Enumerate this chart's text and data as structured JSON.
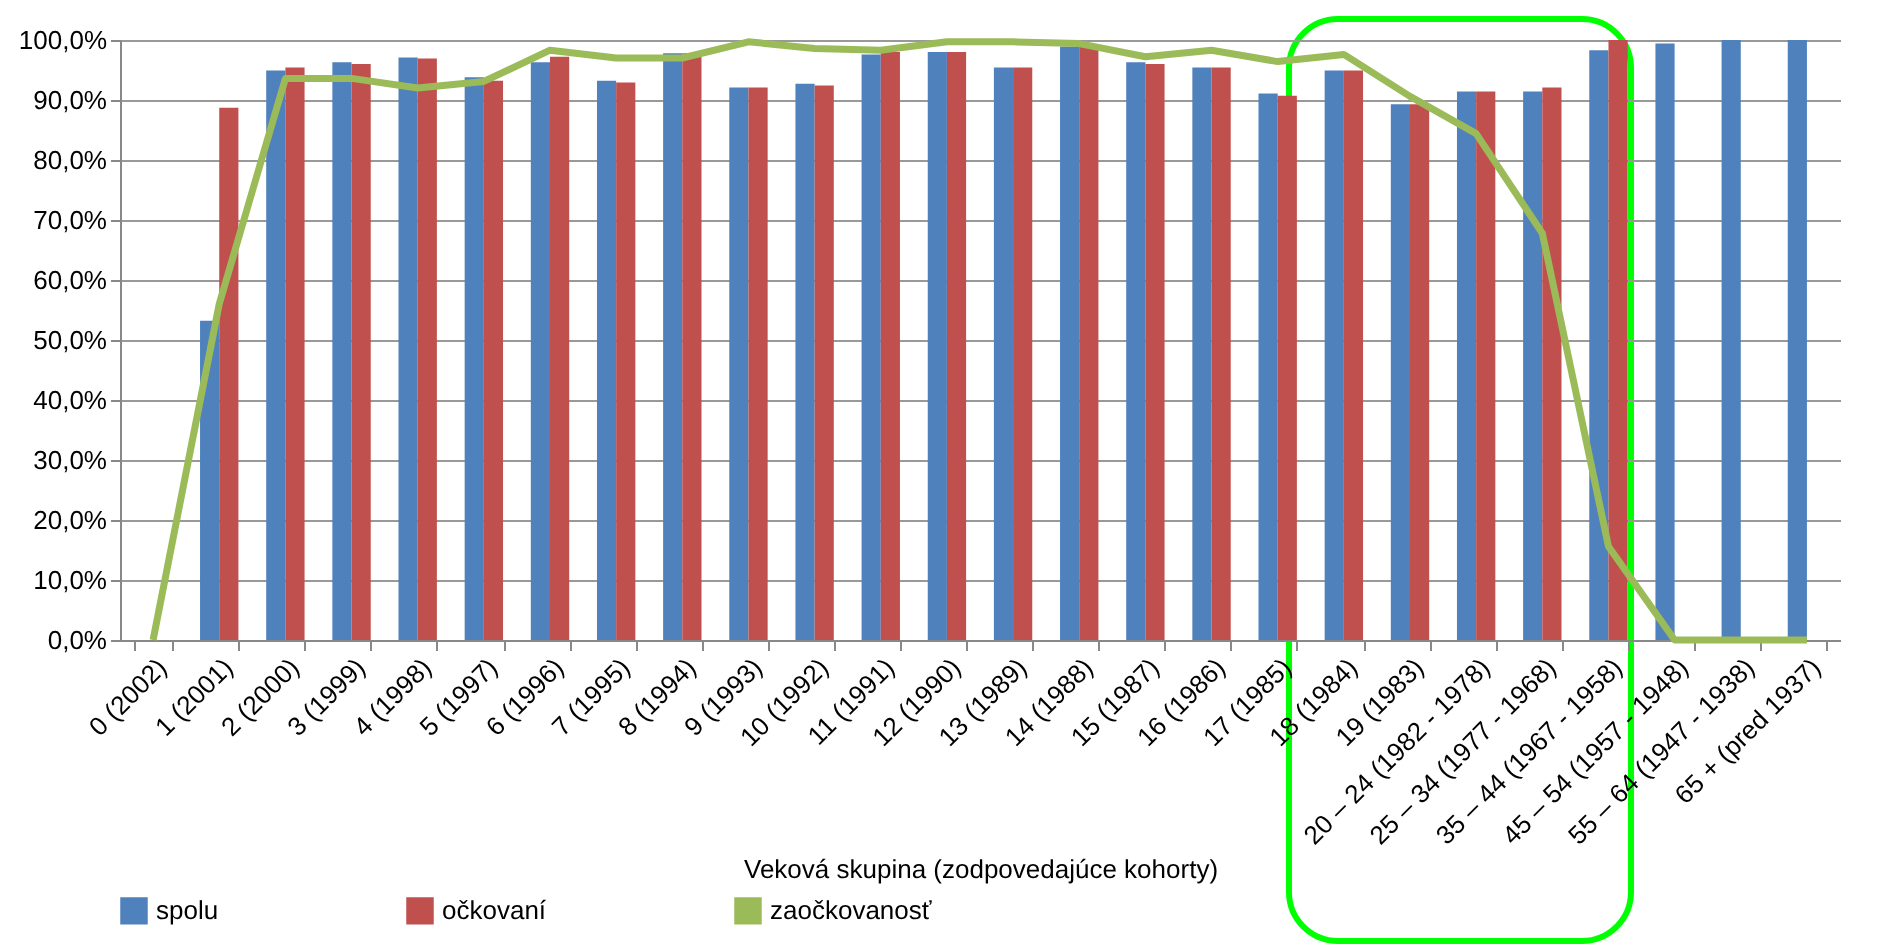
{
  "chart_data": {
    "type": "bar",
    "xlabel": "Veková skupina (zodpovedajúce kohorty)",
    "categories": [
      "0 (2002)",
      "1 (2001)",
      "2 (2000)",
      "3 (1999)",
      "4 (1998)",
      "5 (1997)",
      "6 (1996)",
      "7 (1995)",
      "8 (1994)",
      "9 (1993)",
      "10 (1992)",
      "11 (1991)",
      "12 (1990)",
      "13 (1989)",
      "14 (1988)",
      "15 (1987)",
      "16 (1986)",
      "17 (1985)",
      "18 (1984)",
      "19 (1983)",
      "20 – 24 (1982 - 1978)",
      "25 – 34 (1977 - 1968)",
      "35 – 44 (1967 - 1958)",
      "45 – 54 (1957 - 1948)",
      "55 – 64 (1947 - 1938)",
      "65 + (pred 1937)"
    ],
    "series": [
      {
        "name": "spolu",
        "color": "#4f81bd",
        "values": [
          null,
          53.2,
          94.9,
          96.3,
          97.1,
          93.8,
          96.3,
          93.2,
          97.8,
          92.1,
          92.7,
          97.6,
          98.0,
          95.4,
          98.9,
          96.3,
          95.4,
          91.1,
          94.9,
          89.3,
          91.4,
          91.4,
          98.3,
          99.4,
          100,
          100
        ]
      },
      {
        "name": "očkovaní",
        "color": "#c0504d",
        "values": [
          null,
          88.7,
          95.4,
          96.0,
          96.9,
          93.2,
          97.2,
          92.9,
          97.8,
          92.1,
          92.4,
          98.0,
          98.0,
          95.4,
          98.9,
          96.0,
          95.4,
          90.7,
          94.9,
          89.3,
          91.4,
          92.1,
          100,
          null,
          null,
          null
        ]
      },
      {
        "name": "zaočkovanosť",
        "type": "line",
        "color": "#9bbb59",
        "values": [
          0,
          56,
          93.6,
          93.6,
          92.0,
          93.1,
          98.3,
          97.0,
          97.0,
          99.7,
          98.6,
          98.3,
          99.7,
          99.7,
          99.4,
          97.2,
          98.3,
          96.4,
          97.6,
          90.6,
          84.4,
          67.8,
          15.6,
          0,
          0,
          0
        ]
      }
    ],
    "ylim": [
      0,
      100
    ],
    "yticks": [
      {
        "value": 0,
        "label": "0,0%"
      },
      {
        "value": 10,
        "label": "10,0%"
      },
      {
        "value": 20,
        "label": "20,0%"
      },
      {
        "value": 30,
        "label": "30,0%"
      },
      {
        "value": 40,
        "label": "40,0%"
      },
      {
        "value": 50,
        "label": "50,0%"
      },
      {
        "value": 60,
        "label": "60,0%"
      },
      {
        "value": 70,
        "label": "70,0%"
      },
      {
        "value": 80,
        "label": "80,0%"
      },
      {
        "value": 90,
        "label": "90,0%"
      },
      {
        "value": 100,
        "label": "100,0%"
      }
    ],
    "grid": "y",
    "legend": "bottom left"
  }
}
